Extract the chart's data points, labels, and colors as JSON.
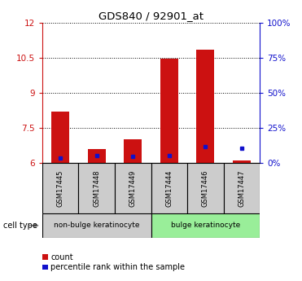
{
  "title": "GDS840 / 92901_at",
  "samples": [
    "GSM17445",
    "GSM17448",
    "GSM17449",
    "GSM17444",
    "GSM17446",
    "GSM17447"
  ],
  "red_values": [
    8.2,
    6.6,
    7.0,
    10.47,
    10.85,
    6.12
  ],
  "blue_values": [
    6.22,
    6.3,
    6.28,
    6.3,
    6.7,
    6.62
  ],
  "ylim_left": [
    6,
    12
  ],
  "ylim_right": [
    0,
    100
  ],
  "yticks_left": [
    6,
    7.5,
    9,
    10.5,
    12
  ],
  "ytick_labels_left": [
    "6",
    "7.5",
    "9",
    "10.5",
    "12"
  ],
  "yticks_right": [
    0,
    25,
    50,
    75,
    100
  ],
  "ytick_labels_right": [
    "0%",
    "25%",
    "50%",
    "75%",
    "100%"
  ],
  "groups": [
    {
      "label": "non-bulge keratinocyte",
      "indices": [
        0,
        1,
        2
      ],
      "color": "#cccccc"
    },
    {
      "label": "bulge keratinocyte",
      "indices": [
        3,
        4,
        5
      ],
      "color": "#99ee99"
    }
  ],
  "bar_width": 0.5,
  "red_color": "#cc1111",
  "blue_color": "#1111cc",
  "legend_count": "count",
  "legend_percentile": "percentile rank within the sample",
  "cell_type_label": "cell type",
  "background_color": "#ffffff"
}
